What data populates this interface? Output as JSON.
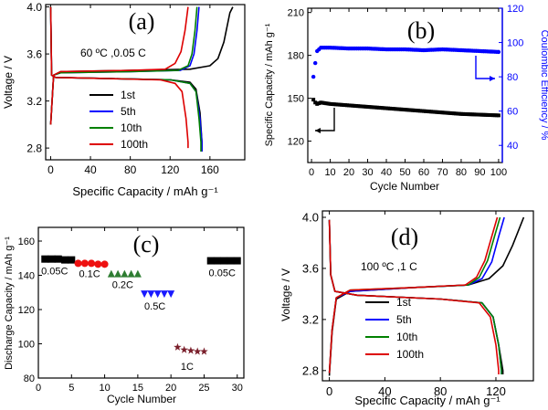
{
  "chart_data": [
    {
      "panel": "(a)",
      "type": "line",
      "annotation": "60 ºC ,0.05 C",
      "xlabel": "Specific Capacity / mAh g⁻¹",
      "ylabel": "Voltage / V",
      "xlim": [
        -5,
        195
      ],
      "ylim": [
        2.7,
        4.02
      ],
      "xticks": [
        0,
        40,
        80,
        120,
        160
      ],
      "yticks": [
        2.8,
        3.2,
        3.6,
        4.0
      ],
      "ytick_labels": [
        "2.8",
        "3.2",
        "3.6",
        "4.0"
      ],
      "legend_position": "bottom-left",
      "series": [
        {
          "name": "1st",
          "color": "#000000",
          "charge": [
            [
              0,
              3.0
            ],
            [
              3,
              3.42
            ],
            [
              10,
              3.45
            ],
            [
              80,
              3.46
            ],
            [
              140,
              3.47
            ],
            [
              160,
              3.5
            ],
            [
              168,
              3.56
            ],
            [
              174,
              3.7
            ],
            [
              180,
              3.95
            ],
            [
              183,
              4.0
            ]
          ],
          "discharge": [
            [
              0,
              4.0
            ],
            [
              1,
              3.42
            ],
            [
              5,
              3.4
            ],
            [
              60,
              3.39
            ],
            [
              120,
              3.38
            ],
            [
              140,
              3.36
            ],
            [
              146,
              3.3
            ],
            [
              150,
              3.1
            ],
            [
              152,
              2.85
            ],
            [
              152,
              2.77
            ]
          ]
        },
        {
          "name": "5th",
          "color": "#0000ff",
          "charge": [
            [
              0,
              3.0
            ],
            [
              3,
              3.42
            ],
            [
              10,
              3.44
            ],
            [
              80,
              3.45
            ],
            [
              130,
              3.46
            ],
            [
              140,
              3.5
            ],
            [
              144,
              3.6
            ],
            [
              147,
              3.8
            ],
            [
              149,
              4.0
            ]
          ],
          "discharge": [
            [
              0,
              4.0
            ],
            [
              1,
              3.42
            ],
            [
              5,
              3.4
            ],
            [
              60,
              3.39
            ],
            [
              120,
              3.38
            ],
            [
              140,
              3.35
            ],
            [
              146,
              3.28
            ],
            [
              150,
              3.05
            ],
            [
              152,
              2.85
            ],
            [
              152,
              2.77
            ]
          ]
        },
        {
          "name": "10th",
          "color": "#008000",
          "charge": [
            [
              0,
              3.0
            ],
            [
              3,
              3.42
            ],
            [
              10,
              3.44
            ],
            [
              80,
              3.45
            ],
            [
              128,
              3.46
            ],
            [
              138,
              3.5
            ],
            [
              142,
              3.6
            ],
            [
              145,
              3.8
            ],
            [
              147,
              4.0
            ]
          ],
          "discharge": [
            [
              0,
              4.0
            ],
            [
              1,
              3.42
            ],
            [
              5,
              3.4
            ],
            [
              60,
              3.39
            ],
            [
              120,
              3.38
            ],
            [
              140,
              3.35
            ],
            [
              146,
              3.28
            ],
            [
              149,
              3.05
            ],
            [
              151,
              2.85
            ],
            [
              151,
              2.77
            ]
          ]
        },
        {
          "name": "100th",
          "color": "#dd0000",
          "charge": [
            [
              0,
              3.0
            ],
            [
              3,
              3.42
            ],
            [
              10,
              3.45
            ],
            [
              80,
              3.46
            ],
            [
              115,
              3.47
            ],
            [
              125,
              3.52
            ],
            [
              131,
              3.62
            ],
            [
              135,
              3.8
            ],
            [
              138,
              4.0
            ]
          ],
          "discharge": [
            [
              0,
              4.0
            ],
            [
              1,
              3.42
            ],
            [
              5,
              3.4
            ],
            [
              60,
              3.39
            ],
            [
              110,
              3.38
            ],
            [
              125,
              3.35
            ],
            [
              132,
              3.28
            ],
            [
              136,
              3.05
            ],
            [
              138,
              2.85
            ],
            [
              138,
              2.8
            ]
          ]
        }
      ]
    },
    {
      "panel": "(b)",
      "type": "scatter",
      "xlabel": "Cycle Number",
      "ylabel": "Specific Capacity / mAh g⁻¹",
      "ylabel_right": "Coulombic Efficiency / %",
      "xlim": [
        -2,
        102
      ],
      "ylim": [
        105,
        213
      ],
      "ylim_right": [
        30,
        120
      ],
      "xticks": [
        0,
        10,
        20,
        30,
        40,
        50,
        60,
        70,
        80,
        90,
        100
      ],
      "yticks": [
        120,
        150,
        180,
        210
      ],
      "yticks_right": [
        40,
        60,
        80,
        100,
        120
      ],
      "right_axis_color": "#0000ff",
      "series": [
        {
          "name": "capacity",
          "axis": "left",
          "color": "#000000",
          "points": [
            [
              1,
              149
            ],
            [
              2,
              147
            ],
            [
              3,
              146
            ],
            [
              5,
              147
            ],
            [
              10,
              146
            ],
            [
              20,
              145
            ],
            [
              30,
              144
            ],
            [
              40,
              143
            ],
            [
              50,
              142
            ],
            [
              60,
              141
            ],
            [
              70,
              140
            ],
            [
              80,
              139
            ],
            [
              90,
              138.5
            ],
            [
              100,
              138
            ]
          ]
        },
        {
          "name": "efficiency",
          "axis": "right",
          "color": "#0000ff",
          "points": [
            [
              1,
              80
            ],
            [
              2,
              88
            ],
            [
              3,
              95
            ],
            [
              5,
              97
            ],
            [
              10,
              97
            ],
            [
              20,
              96.5
            ],
            [
              30,
              96.5
            ],
            [
              40,
              96
            ],
            [
              50,
              96
            ],
            [
              60,
              95.5
            ],
            [
              70,
              96
            ],
            [
              80,
              95.5
            ],
            [
              90,
              95
            ],
            [
              100,
              94.5
            ]
          ]
        }
      ]
    },
    {
      "panel": "(c)",
      "type": "scatter",
      "xlabel": "Cycle Number",
      "ylabel": "Discharge Capacity / mAh g⁻¹",
      "xlim": [
        0,
        31
      ],
      "ylim": [
        80,
        168
      ],
      "xticks": [
        0,
        5,
        10,
        15,
        20,
        25,
        30
      ],
      "yticks": [
        80,
        100,
        120,
        140,
        160
      ],
      "series": [
        {
          "name": "0.05C",
          "label": "0.05C",
          "marker": "square",
          "color": "#000000",
          "x": [
            1,
            2,
            3,
            4,
            5
          ],
          "values": [
            149.5,
            149.5,
            149.5,
            149,
            149
          ]
        },
        {
          "name": "0.1C",
          "label": "0.1C",
          "marker": "circle",
          "color": "#ee1111",
          "x": [
            6,
            7,
            8,
            9,
            10
          ],
          "values": [
            147,
            147,
            147,
            146.5,
            146.5
          ]
        },
        {
          "name": "0.2C",
          "label": "0.2C",
          "marker": "triangle-up",
          "color": "#2e7d32",
          "x": [
            11,
            12,
            13,
            14,
            15
          ],
          "values": [
            141,
            141,
            141,
            141,
            141
          ]
        },
        {
          "name": "0.5C",
          "label": "0.5C",
          "marker": "triangle-down",
          "color": "#1a1aff",
          "x": [
            16,
            17,
            18,
            19,
            20
          ],
          "values": [
            129,
            129,
            129,
            129,
            129
          ]
        },
        {
          "name": "1C",
          "label": "1C",
          "marker": "star",
          "color": "#7a1f2b",
          "x": [
            21,
            22,
            23,
            24,
            25
          ],
          "values": [
            98,
            96.5,
            96,
            95.5,
            95.5
          ]
        },
        {
          "name": "0.05C (recovery)",
          "label": "0.05C",
          "marker": "square",
          "color": "#000000",
          "x": [
            26,
            27,
            28,
            29,
            30
          ],
          "values": [
            148.5,
            148.5,
            148.5,
            148.5,
            148.5
          ]
        }
      ]
    },
    {
      "panel": "(d)",
      "type": "line",
      "annotation": "100 ºC ,1 C",
      "xlabel": "Specific Capacity / mAh g⁻¹",
      "ylabel": "Voltage / V",
      "xlim": [
        -5,
        147
      ],
      "ylim": [
        2.72,
        4.05
      ],
      "xticks": [
        0,
        40,
        80,
        120
      ],
      "yticks": [
        2.8,
        3.2,
        3.6,
        4.0
      ],
      "ytick_labels": [
        "2.8",
        "3.2",
        "3.6",
        "4.0"
      ],
      "legend_position": "bottom-left",
      "series": [
        {
          "name": "1st",
          "color": "#000000",
          "charge": [
            [
              0,
              2.76
            ],
            [
              2,
              3.1
            ],
            [
              5,
              3.36
            ],
            [
              15,
              3.42
            ],
            [
              60,
              3.45
            ],
            [
              100,
              3.47
            ],
            [
              115,
              3.52
            ],
            [
              125,
              3.62
            ],
            [
              132,
              3.78
            ],
            [
              140,
              4.0
            ]
          ],
          "discharge": [
            [
              0,
              3.98
            ],
            [
              1,
              3.55
            ],
            [
              4,
              3.42
            ],
            [
              20,
              3.39
            ],
            [
              80,
              3.36
            ],
            [
              110,
              3.33
            ],
            [
              118,
              3.22
            ],
            [
              122,
              3.0
            ],
            [
              125,
              2.8
            ],
            [
              125,
              2.77
            ]
          ]
        },
        {
          "name": "5th",
          "color": "#0000ff",
          "charge": [
            [
              0,
              2.78
            ],
            [
              2,
              3.12
            ],
            [
              5,
              3.37
            ],
            [
              15,
              3.42
            ],
            [
              60,
              3.45
            ],
            [
              100,
              3.47
            ],
            [
              110,
              3.52
            ],
            [
              117,
              3.65
            ],
            [
              122,
              3.85
            ],
            [
              126,
              4.0
            ]
          ],
          "discharge": [
            [
              0,
              3.98
            ],
            [
              1,
              3.55
            ],
            [
              4,
              3.42
            ],
            [
              20,
              3.39
            ],
            [
              80,
              3.36
            ],
            [
              110,
              3.33
            ],
            [
              118,
              3.22
            ],
            [
              122,
              3.0
            ],
            [
              124,
              2.8
            ],
            [
              124,
              2.77
            ]
          ]
        },
        {
          "name": "10th",
          "color": "#008000",
          "charge": [
            [
              0,
              2.78
            ],
            [
              2,
              3.12
            ],
            [
              5,
              3.37
            ],
            [
              15,
              3.43
            ],
            [
              60,
              3.45
            ],
            [
              100,
              3.47
            ],
            [
              108,
              3.53
            ],
            [
              114,
              3.66
            ],
            [
              119,
              3.85
            ],
            [
              123,
              4.0
            ]
          ],
          "discharge": [
            [
              0,
              3.98
            ],
            [
              1,
              3.55
            ],
            [
              4,
              3.42
            ],
            [
              20,
              3.39
            ],
            [
              80,
              3.36
            ],
            [
              110,
              3.33
            ],
            [
              118,
              3.22
            ],
            [
              122,
              3.0
            ],
            [
              124,
              2.8
            ],
            [
              124,
              2.77
            ]
          ]
        },
        {
          "name": "100th",
          "color": "#dd0000",
          "charge": [
            [
              0,
              2.78
            ],
            [
              2,
              3.12
            ],
            [
              5,
              3.37
            ],
            [
              15,
              3.43
            ],
            [
              60,
              3.45
            ],
            [
              98,
              3.47
            ],
            [
              106,
              3.53
            ],
            [
              112,
              3.66
            ],
            [
              117,
              3.85
            ],
            [
              121,
              4.0
            ]
          ],
          "discharge": [
            [
              0,
              3.98
            ],
            [
              1,
              3.55
            ],
            [
              4,
              3.42
            ],
            [
              20,
              3.39
            ],
            [
              80,
              3.36
            ],
            [
              108,
              3.33
            ],
            [
              116,
              3.22
            ],
            [
              120,
              3.0
            ],
            [
              122,
              2.8
            ],
            [
              122,
              2.77
            ]
          ]
        }
      ]
    }
  ]
}
